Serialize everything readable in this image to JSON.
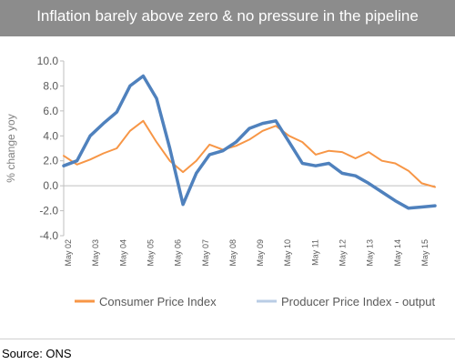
{
  "chart_data": {
    "type": "line",
    "title": "Inflation barely above zero & no pressure in the pipeline",
    "ylabel": "% change yoy",
    "xlabel": "",
    "ylim": [
      -4.0,
      10.0
    ],
    "yticks": [
      "10.0",
      "8.0",
      "6.0",
      "4.0",
      "2.0",
      "0.0",
      "-2.0",
      "-4.0"
    ],
    "xticks": [
      "May 02",
      "May 03",
      "May 04",
      "May 05",
      "May 06",
      "May 07",
      "May 08",
      "May 09",
      "May 10",
      "May 11",
      "May 12",
      "May 13",
      "May 14",
      "May 15"
    ],
    "x": [
      2002.0,
      2002.5,
      2003.0,
      2003.5,
      2004.0,
      2004.5,
      2005.0,
      2005.5,
      2006.0,
      2006.5,
      2007.0,
      2007.5,
      2008.0,
      2008.5,
      2009.0,
      2009.5,
      2010.0,
      2010.5,
      2011.0,
      2011.5,
      2012.0,
      2012.5,
      2013.0,
      2013.5,
      2014.0,
      2014.5,
      2015.0,
      2015.5,
      2016.0
    ],
    "series": [
      {
        "name": "Consumer Price Index",
        "color": "#f79646",
        "values": [
          2.4,
          1.7,
          2.1,
          2.6,
          3.0,
          4.4,
          5.2,
          3.5,
          2.0,
          1.1,
          2.0,
          3.3,
          2.9,
          3.2,
          3.7,
          4.4,
          4.8,
          4.0,
          3.5,
          2.5,
          2.8,
          2.7,
          2.2,
          2.7,
          2.0,
          1.8,
          1.2,
          0.2,
          -0.1
        ]
      },
      {
        "name": "Producer Price Index - output",
        "color": "#4f81bd",
        "values": [
          1.6,
          2.0,
          4.0,
          5.0,
          5.9,
          8.0,
          8.8,
          7.0,
          3.0,
          -1.5,
          1.0,
          2.5,
          2.8,
          3.5,
          4.6,
          5.0,
          5.2,
          3.5,
          1.8,
          1.6,
          1.8,
          1.0,
          0.8,
          0.2,
          -0.5,
          -1.2,
          -1.8,
          -1.7,
          -1.6
        ]
      }
    ],
    "legend_position": "bottom",
    "grid": false
  },
  "source": "Source: ONS"
}
